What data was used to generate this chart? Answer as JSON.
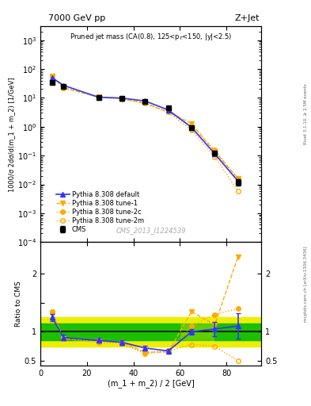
{
  "title_top": "7000 GeV pp",
  "title_right": "Z+Jet",
  "panel_title": "Pruned jet mass (CA(0.8), 125<p$_T$<150, |y|<2.5)",
  "ylabel_main": "1000/σ 2dσ/d(m_1 + m_2) [1/GeV]",
  "ylabel_ratio": "Ratio to CMS",
  "xlabel": "(m_1 + m_2) / 2 [GeV]",
  "watermark": "CMS_2013_I1224539",
  "rivet_label": "Rivet 3.1.10, ≥ 2.5M events",
  "mcplots_label": "mcplots.cern.ch [arXiv:1306.3436]",
  "cms_x": [
    5,
    10,
    25,
    35,
    45,
    55,
    65,
    75,
    85
  ],
  "cms_y": [
    35,
    25,
    10,
    9.5,
    7.5,
    4.5,
    0.95,
    0.12,
    0.012
  ],
  "cms_yerr": [
    3,
    2,
    0.8,
    0.7,
    0.6,
    0.4,
    0.08,
    0.015,
    0.003
  ],
  "pythia_default_x": [
    5,
    10,
    25,
    35,
    45,
    55,
    65,
    75,
    85
  ],
  "pythia_default_y": [
    50,
    27,
    10.5,
    9.8,
    7.8,
    3.8,
    0.95,
    0.115,
    0.013
  ],
  "pythia_tune1_x": [
    5,
    10,
    25,
    35,
    45,
    55,
    65,
    75,
    85
  ],
  "pythia_tune1_y": [
    55,
    22,
    11,
    9.5,
    6.5,
    3.2,
    1.3,
    0.135,
    0.016
  ],
  "pythia_tune2c_x": [
    5,
    10,
    25,
    35,
    45,
    55,
    65,
    75,
    85
  ],
  "pythia_tune2c_y": [
    55,
    22,
    10.5,
    9.2,
    6.5,
    3.2,
    1.05,
    0.155,
    0.016
  ],
  "pythia_tune2m_x": [
    5,
    10,
    25,
    35,
    45,
    55,
    65,
    75,
    85
  ],
  "pythia_tune2m_y": [
    55,
    22,
    10.8,
    9.3,
    6.4,
    3.2,
    0.75,
    0.09,
    0.006
  ],
  "ratio_default_x": [
    5,
    10,
    25,
    35,
    45,
    55,
    65,
    75,
    85
  ],
  "ratio_default_y": [
    1.25,
    0.9,
    0.85,
    0.82,
    0.72,
    0.67,
    1.0,
    1.05,
    1.1
  ],
  "ratio_default_yerr": [
    0.06,
    0.05,
    0.04,
    0.04,
    0.04,
    0.04,
    0.05,
    0.12,
    0.22
  ],
  "ratio_tune1_x": [
    5,
    10,
    25,
    35,
    45,
    55,
    65,
    75,
    85
  ],
  "ratio_tune1_y": [
    1.3,
    0.88,
    0.85,
    0.82,
    0.65,
    0.65,
    1.35,
    1.12,
    2.3
  ],
  "ratio_tune2c_x": [
    5,
    10,
    25,
    35,
    45,
    55,
    65,
    75,
    85
  ],
  "ratio_tune2c_y": [
    1.35,
    0.88,
    0.82,
    0.8,
    0.63,
    0.68,
    1.1,
    1.3,
    1.4
  ],
  "ratio_tune2m_x": [
    5,
    10,
    25,
    35,
    45,
    55,
    65,
    75,
    85
  ],
  "ratio_tune2m_y": [
    1.35,
    0.88,
    0.83,
    0.8,
    0.62,
    0.67,
    0.78,
    0.75,
    0.5
  ],
  "green_ylo": 0.85,
  "green_yhi": 1.15,
  "yellow_ylo": 0.75,
  "yellow_yhi": 1.25,
  "color_cms": "#000000",
  "color_default": "#3333ff",
  "color_tune": "#ffaa00",
  "color_green": "#00bb00",
  "color_yellow": "#eeee00",
  "ylim_main": [
    0.0001,
    3000
  ],
  "ylim_ratio": [
    0.42,
    2.55
  ],
  "xlim": [
    0,
    95
  ]
}
